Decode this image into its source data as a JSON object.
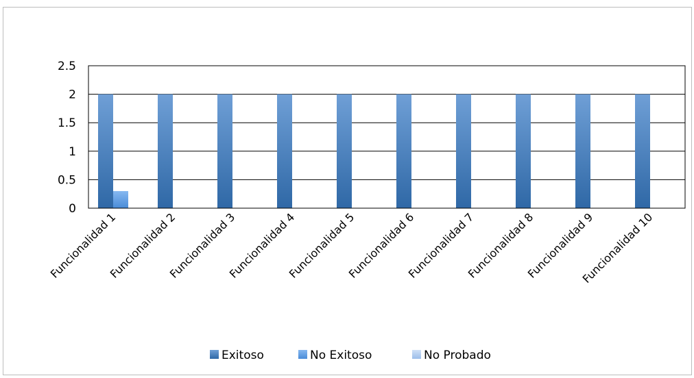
{
  "chart_data": {
    "type": "bar",
    "title": "",
    "xlabel": "",
    "ylabel": "",
    "ylim": [
      0,
      2.5
    ],
    "yticks": [
      "0",
      "0.5",
      "1",
      "1.5",
      "2",
      "2.5"
    ],
    "grid": true,
    "legend_position": "bottom",
    "categories": [
      "Funcionalidad 1",
      "Funcionalidad 2",
      "Funcionalidad 3",
      "Funcionalidad 4",
      "Funcionalidad 5",
      "Funcionalidad 6",
      "Funcionalidad 7",
      "Funcionalidad 8",
      "Funcionalidad 9",
      "Funcionalidad 10"
    ],
    "series": [
      {
        "name": "Exitoso",
        "color": "#3f79b5",
        "values": [
          2,
          2,
          2,
          2,
          2,
          2,
          2,
          2,
          2,
          2
        ]
      },
      {
        "name": "No Exitoso",
        "color": "#5b9be0",
        "values": [
          0.3,
          0,
          0,
          0,
          0,
          0,
          0,
          0,
          0,
          0
        ]
      },
      {
        "name": "No Probado",
        "color": "#a9c7ee",
        "values": [
          0,
          0,
          0,
          0,
          0,
          0,
          0,
          0,
          0,
          0
        ]
      }
    ]
  }
}
